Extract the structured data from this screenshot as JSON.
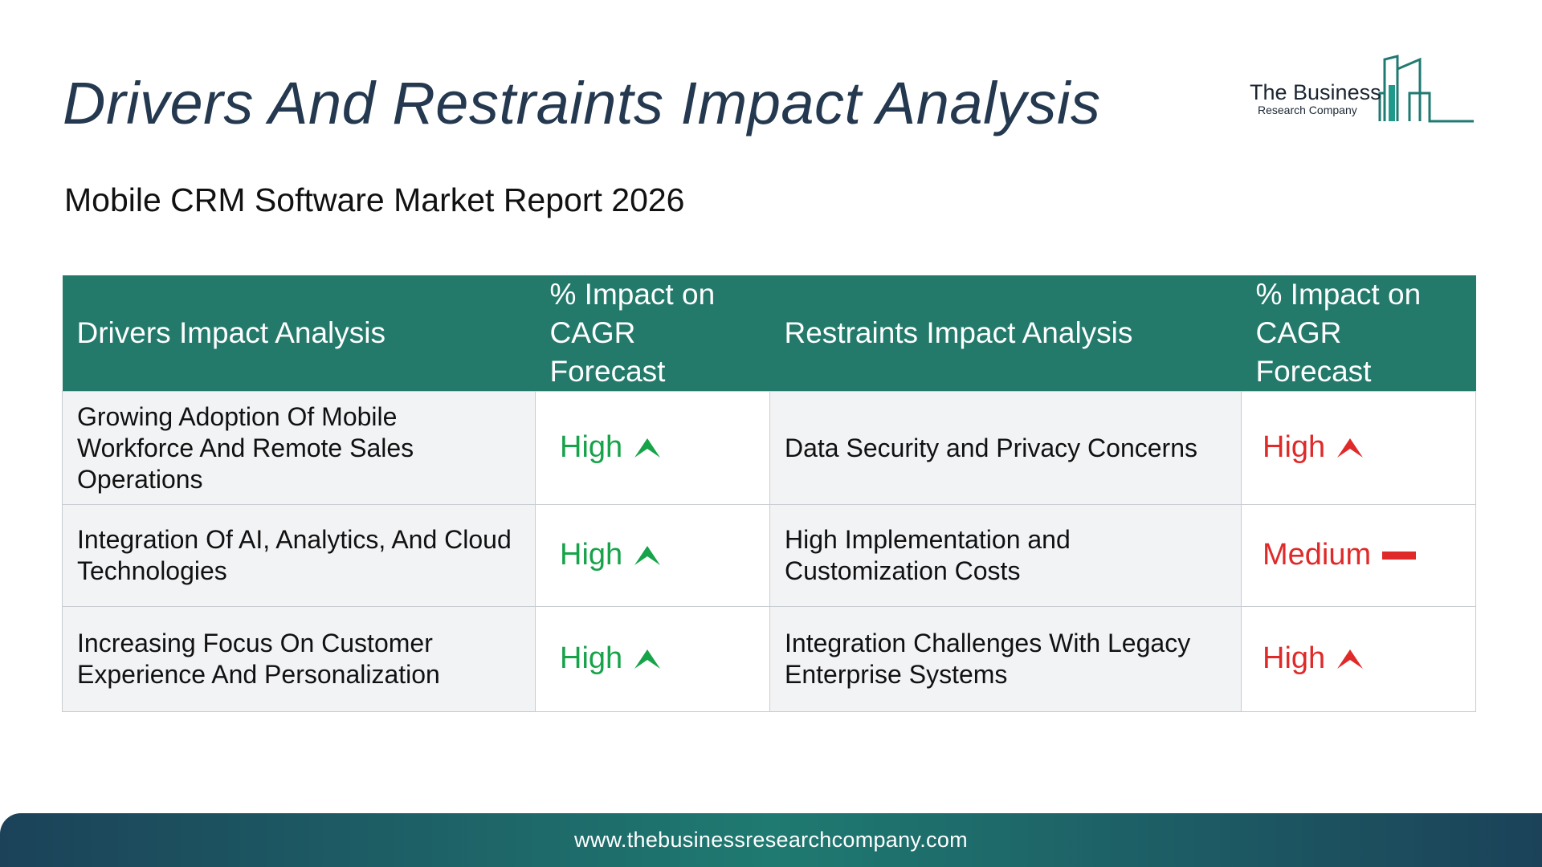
{
  "header": {
    "title": "Drivers And Restraints Impact Analysis",
    "subtitle": "Mobile CRM Software Market Report 2026"
  },
  "logo": {
    "line1": "The Business",
    "line2": "Research Company",
    "icon": "building-bars-icon",
    "color": "#1f7a71"
  },
  "table": {
    "headers": {
      "drivers": "Drivers Impact Analysis",
      "drivers_impact": "% Impact on CAGR Forecast",
      "restraints": "Restraints Impact Analysis",
      "restraints_impact": "% Impact on CAGR Forecast"
    },
    "rows": [
      {
        "driver": "Growing Adoption Of Mobile Workforce And Remote Sales Operations",
        "driver_impact": "High",
        "driver_icon": "arrow-up-icon",
        "restraint": "Data Security and Privacy Concerns",
        "restraint_impact": "High",
        "restraint_icon": "arrow-up-icon"
      },
      {
        "driver": "Integration Of AI, Analytics, And Cloud Technologies",
        "driver_impact": "High",
        "driver_icon": "arrow-up-icon",
        "restraint": "High Implementation and Customization Costs",
        "restraint_impact": "Medium",
        "restraint_icon": "dash-icon"
      },
      {
        "driver": "Increasing Focus On Customer Experience And Personalization",
        "driver_impact": "High",
        "driver_icon": "arrow-up-icon",
        "restraint": "Integration Challenges With Legacy Enterprise Systems",
        "restraint_impact": "High",
        "restraint_icon": "arrow-up-icon"
      }
    ]
  },
  "colors": {
    "header_bg": "#237a6b",
    "driver_impact": "#17a34a",
    "restraint_impact": "#e02a2a",
    "title": "#24384f"
  },
  "footer": {
    "url": "www.thebusinessresearchcompany.com"
  }
}
